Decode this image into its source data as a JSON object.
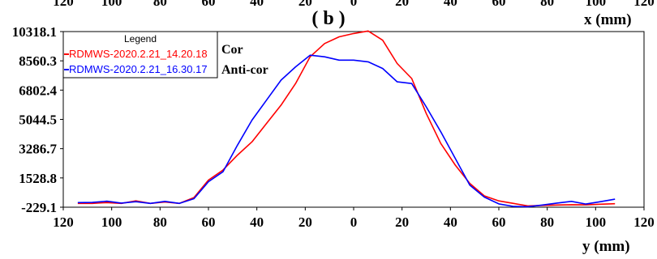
{
  "chart_data": {
    "type": "line",
    "title": "( b )",
    "top_axis_label": "x (mm)",
    "top_axis_ticks": [
      "120",
      "100",
      "80",
      "60",
      "40",
      "20",
      "0",
      "20",
      "40",
      "60",
      "80",
      "100",
      "120"
    ],
    "xlabel": "y (mm)",
    "xlim": [
      120,
      -120
    ],
    "x_ticks": [
      {
        "value": 120,
        "label": "120"
      },
      {
        "value": 100,
        "label": "100"
      },
      {
        "value": 80,
        "label": "80"
      },
      {
        "value": 60,
        "label": "60"
      },
      {
        "value": 40,
        "label": "40"
      },
      {
        "value": 20,
        "label": "20"
      },
      {
        "value": 0,
        "label": "0"
      },
      {
        "value": -20,
        "label": "20"
      },
      {
        "value": -40,
        "label": "40"
      },
      {
        "value": -60,
        "label": "60"
      },
      {
        "value": -80,
        "label": "80"
      },
      {
        "value": -100,
        "label": "100"
      },
      {
        "value": -120,
        "label": "120"
      }
    ],
    "ylim": [
      -229.1,
      10318.1
    ],
    "y_ticks": [
      "10318.1",
      "8560.3",
      "6802.4",
      "5044.5",
      "3286.7",
      "1528.8",
      "-229.1"
    ],
    "grid": false,
    "legend": {
      "title": "Legend",
      "placement": "top-left",
      "entries": [
        {
          "label": "RDMWS-2020.2.21_14.20.18",
          "color": "#ff0000"
        },
        {
          "label": "RDMWS-2020.2.21_16.30.17",
          "color": "#0000ff"
        }
      ]
    },
    "annotations": [
      "Cor",
      "Anti-cor"
    ],
    "series": [
      {
        "color": "#ff0000",
        "x": [
          114,
          108,
          102,
          96,
          90,
          84,
          78,
          72,
          66,
          60,
          54,
          48,
          42,
          36,
          30,
          24,
          18,
          12,
          6,
          0,
          -6,
          -12,
          -18,
          -24,
          -30,
          -36,
          -42,
          -48,
          -54,
          -60,
          -66,
          -72,
          -78,
          -84,
          -90,
          -96,
          -102,
          -108
        ],
        "y": [
          0,
          0,
          50,
          0,
          150,
          0,
          80,
          0,
          350,
          1400,
          2000,
          2900,
          3700,
          4800,
          5900,
          7200,
          8800,
          9600,
          10000,
          10200,
          10350,
          9800,
          8400,
          7500,
          5400,
          3600,
          2300,
          1200,
          450,
          150,
          0,
          -150,
          -120,
          -100,
          -80,
          -90,
          -50,
          -20
        ]
      },
      {
        "color": "#0000ff",
        "x": [
          114,
          108,
          102,
          96,
          90,
          84,
          78,
          72,
          66,
          60,
          54,
          48,
          42,
          36,
          30,
          24,
          18,
          12,
          6,
          0,
          -6,
          -12,
          -18,
          -24,
          -30,
          -36,
          -42,
          -48,
          -54,
          -60,
          -66,
          -72,
          -78,
          -84,
          -90,
          -96,
          -102,
          -108
        ],
        "y": [
          50,
          60,
          130,
          20,
          100,
          0,
          120,
          0,
          280,
          1300,
          1900,
          3500,
          5000,
          6200,
          7400,
          8200,
          8900,
          8800,
          8600,
          8600,
          8500,
          8100,
          7300,
          7200,
          5800,
          4300,
          2700,
          1100,
          380,
          -30,
          -180,
          -200,
          -100,
          20,
          120,
          -40,
          100,
          250
        ]
      }
    ]
  }
}
